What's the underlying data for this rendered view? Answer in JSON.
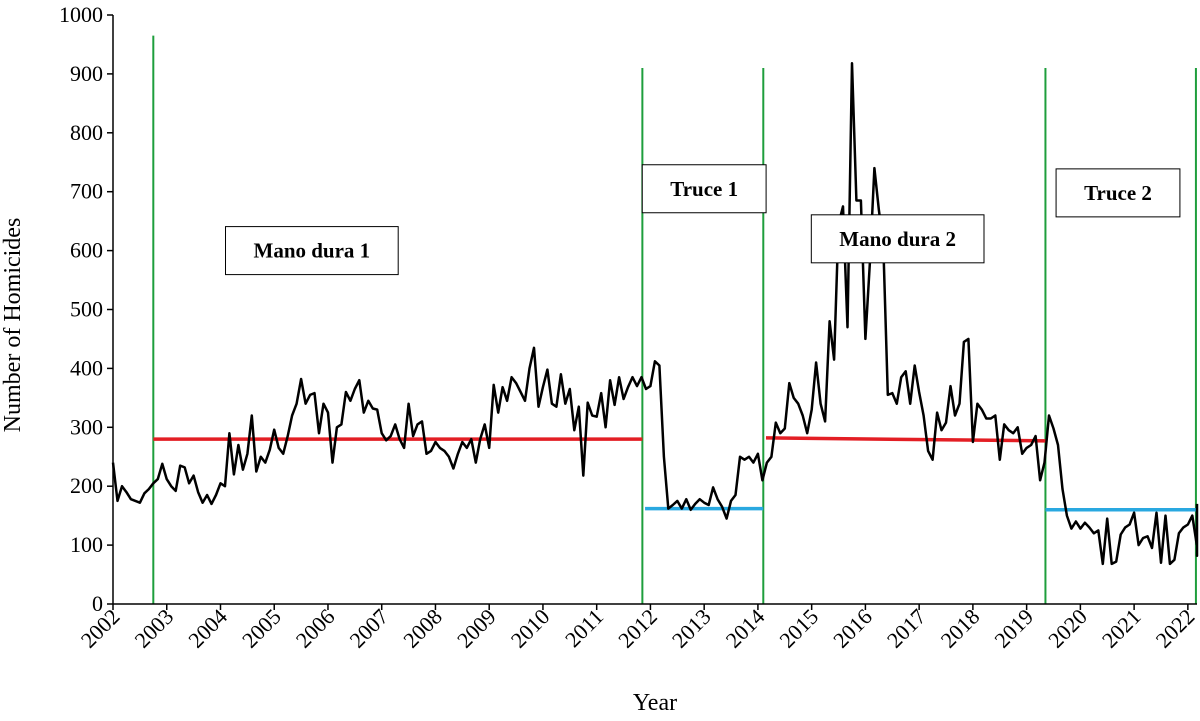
{
  "chart_data": {
    "type": "line",
    "title": "",
    "xlabel": "Year",
    "ylabel": "Number of Homicides",
    "xlim": [
      2002,
      2022.17
    ],
    "ylim": [
      0,
      1000
    ],
    "y_ticks": [
      0,
      100,
      200,
      300,
      400,
      500,
      600,
      700,
      800,
      900,
      1000
    ],
    "x_ticks": [
      "2002",
      "2003",
      "2004",
      "2005",
      "2006",
      "2007",
      "2008",
      "2009",
      "2010",
      "2011",
      "2012",
      "2013",
      "2014",
      "2015",
      "2016",
      "2017",
      "2018",
      "2019",
      "2020",
      "2021",
      "2022"
    ],
    "grid": false,
    "legend": "none",
    "colors": {
      "series": "#000000",
      "mano_dura_mean": "#e31e24",
      "truce_mean": "#29a8e0",
      "boundary": "#1e9e3c"
    },
    "series": [
      {
        "x_start": 2002.0,
        "x_step": 0.0833333,
        "values": [
          240,
          175,
          200,
          190,
          178,
          175,
          172,
          188,
          195,
          205,
          212,
          238,
          212,
          200,
          192,
          235,
          232,
          205,
          218,
          190,
          172,
          185,
          170,
          185,
          205,
          200,
          290,
          220,
          270,
          228,
          255,
          320,
          225,
          250,
          240,
          262,
          296,
          265,
          255,
          285,
          320,
          340,
          382,
          340,
          355,
          358,
          290,
          340,
          325,
          240,
          300,
          305,
          360,
          345,
          365,
          380,
          325,
          345,
          332,
          330,
          290,
          278,
          285,
          305,
          280,
          265,
          340,
          285,
          305,
          310,
          255,
          260,
          275,
          265,
          260,
          250,
          230,
          255,
          275,
          265,
          280,
          240,
          280,
          305,
          265,
          372,
          325,
          368,
          345,
          385,
          375,
          360,
          345,
          400,
          435,
          335,
          368,
          398,
          340,
          335,
          390,
          340,
          365,
          295,
          335,
          218,
          342,
          320,
          318,
          358,
          300,
          380,
          338,
          385,
          348,
          368,
          385,
          370,
          385,
          365,
          370,
          412,
          405,
          250,
          162,
          168,
          175,
          162,
          178,
          160,
          170,
          178,
          172,
          168,
          198,
          178,
          165,
          145,
          175,
          185,
          250,
          245,
          250,
          240,
          255,
          210,
          240,
          250,
          308,
          290,
          298,
          375,
          350,
          340,
          320,
          290,
          330,
          410,
          340,
          310,
          480,
          415,
          645,
          675,
          470,
          918,
          685,
          685,
          450,
          580,
          740,
          670,
          610,
          355,
          358,
          340,
          385,
          395,
          340,
          405,
          360,
          320,
          260,
          245,
          325,
          295,
          308,
          370,
          320,
          340,
          445,
          450,
          275,
          340,
          330,
          315,
          315,
          320,
          245,
          305,
          295,
          290,
          300,
          255,
          265,
          270,
          285,
          210,
          240,
          320,
          298,
          270,
          195,
          150,
          128,
          140,
          128,
          138,
          130,
          120,
          125,
          68,
          145,
          68,
          72,
          118,
          130,
          135,
          155,
          100,
          112,
          115,
          95,
          155,
          70,
          150,
          68,
          75,
          120,
          130,
          135,
          150,
          100,
          112,
          88,
          82,
          170
        ]
      }
    ],
    "means": [
      {
        "period": "Mano dura 1",
        "x0": 2002.75,
        "x1": 2011.85,
        "y": 280,
        "color": "#e31e24"
      },
      {
        "period": "Truce 1",
        "x0": 2011.9,
        "x1": 2014.1,
        "y": 162,
        "color": "#29a8e0"
      },
      {
        "period": "Mano dura 2",
        "x0": 2014.15,
        "x1": 2019.35,
        "y0": 282,
        "y1": 277,
        "color": "#e31e24"
      },
      {
        "period": "Truce 2",
        "x0": 2019.35,
        "x1": 2022.17,
        "y": 160,
        "color": "#29a8e0"
      }
    ],
    "boundaries": [
      {
        "x": 2002.75,
        "top": 965
      },
      {
        "x": 2011.85,
        "top": 910
      },
      {
        "x": 2014.1,
        "top": 910
      },
      {
        "x": 2019.35,
        "top": 910
      },
      {
        "x": 2022.15,
        "top": 910
      }
    ],
    "annotations": [
      {
        "text": "Mano dura 1",
        "x": 2005.7,
        "y": 600
      },
      {
        "text": "Truce 1",
        "x": 2013.0,
        "y": 705
      },
      {
        "text": "Mano dura 2",
        "x": 2016.6,
        "y": 620
      },
      {
        "text": "Truce 2",
        "x": 2020.7,
        "y": 698
      }
    ]
  }
}
